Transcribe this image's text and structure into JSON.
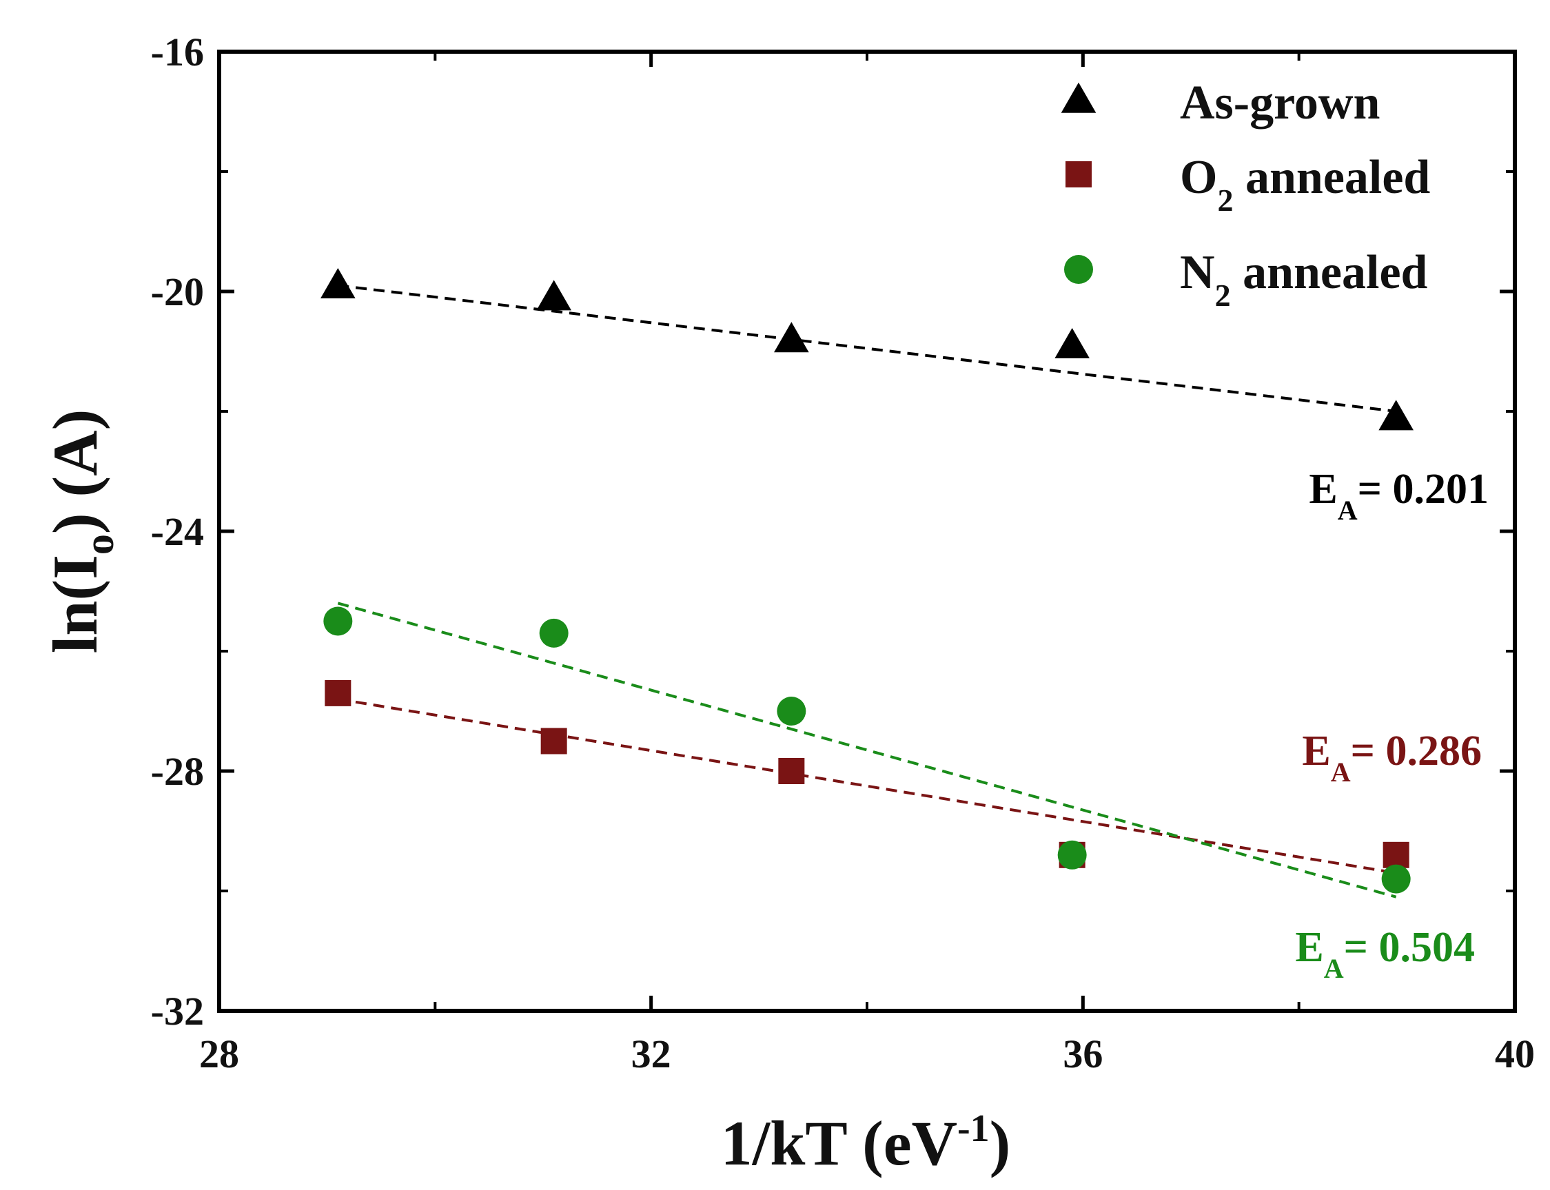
{
  "chart_data": {
    "type": "scatter",
    "xlabel": "1/kT (eV-1)",
    "xlabel_parts": {
      "main": "1/kT (eV",
      "sup": "-1",
      "end": ")"
    },
    "ylabel": "ln(Io) (A)",
    "ylabel_parts": {
      "main": "ln(I",
      "sub": "o",
      "end": ") (A)"
    },
    "xlim": [
      28,
      40
    ],
    "ylim": [
      -32,
      -16
    ],
    "xticks": [
      28,
      32,
      36,
      40
    ],
    "xtick_labels": [
      "28",
      "32",
      "36",
      "40"
    ],
    "xminor": [
      30,
      34,
      38
    ],
    "yticks": [
      -32,
      -28,
      -24,
      -20,
      -16
    ],
    "ytick_labels": [
      "-32",
      "-28",
      "-24",
      "-20",
      "-16"
    ],
    "yminor": [
      -30,
      -26,
      -22,
      -18
    ],
    "grid": false,
    "legend_position": "top-right",
    "series": [
      {
        "name": "As-grown",
        "label_parts": {
          "pre": "As-grown",
          "sub": "",
          "post": ""
        },
        "marker": "triangle",
        "color": "#000000",
        "x": [
          29.1,
          31.1,
          33.3,
          35.9,
          38.9
        ],
        "y": [
          -19.9,
          -20.1,
          -20.8,
          -20.9,
          -22.1
        ],
        "fit": {
          "x": [
            29.1,
            38.9
          ],
          "y": [
            -19.9,
            -22.0
          ],
          "style": "dashed"
        },
        "annotation": {
          "pre": "E",
          "sub": "A",
          "post": "= 0.201"
        }
      },
      {
        "name": "O2 annealed",
        "label_parts": {
          "pre": "O",
          "sub": "2",
          "post": " annealed"
        },
        "marker": "square",
        "color": "#7a1414",
        "x": [
          29.1,
          31.1,
          33.3,
          35.9,
          38.9
        ],
        "y": [
          -26.7,
          -27.5,
          -28.0,
          -29.4,
          -29.4
        ],
        "fit": {
          "x": [
            29.1,
            38.9
          ],
          "y": [
            -26.8,
            -29.7
          ],
          "style": "dashed"
        },
        "annotation": {
          "pre": "E",
          "sub": "A",
          "post": "= 0.286"
        }
      },
      {
        "name": "N2 annealed",
        "label_parts": {
          "pre": "N",
          "sub": "2",
          "post": " annealed"
        },
        "marker": "circle",
        "color": "#1a8c1a",
        "x": [
          29.1,
          31.1,
          33.3,
          35.9,
          38.9
        ],
        "y": [
          -25.5,
          -25.7,
          -27.0,
          -29.4,
          -29.8
        ],
        "fit": {
          "x": [
            29.1,
            38.9
          ],
          "y": [
            -25.2,
            -30.1
          ],
          "style": "dashed"
        },
        "annotation": {
          "pre": "E",
          "sub": "A",
          "post": "= 0.504"
        }
      }
    ]
  }
}
